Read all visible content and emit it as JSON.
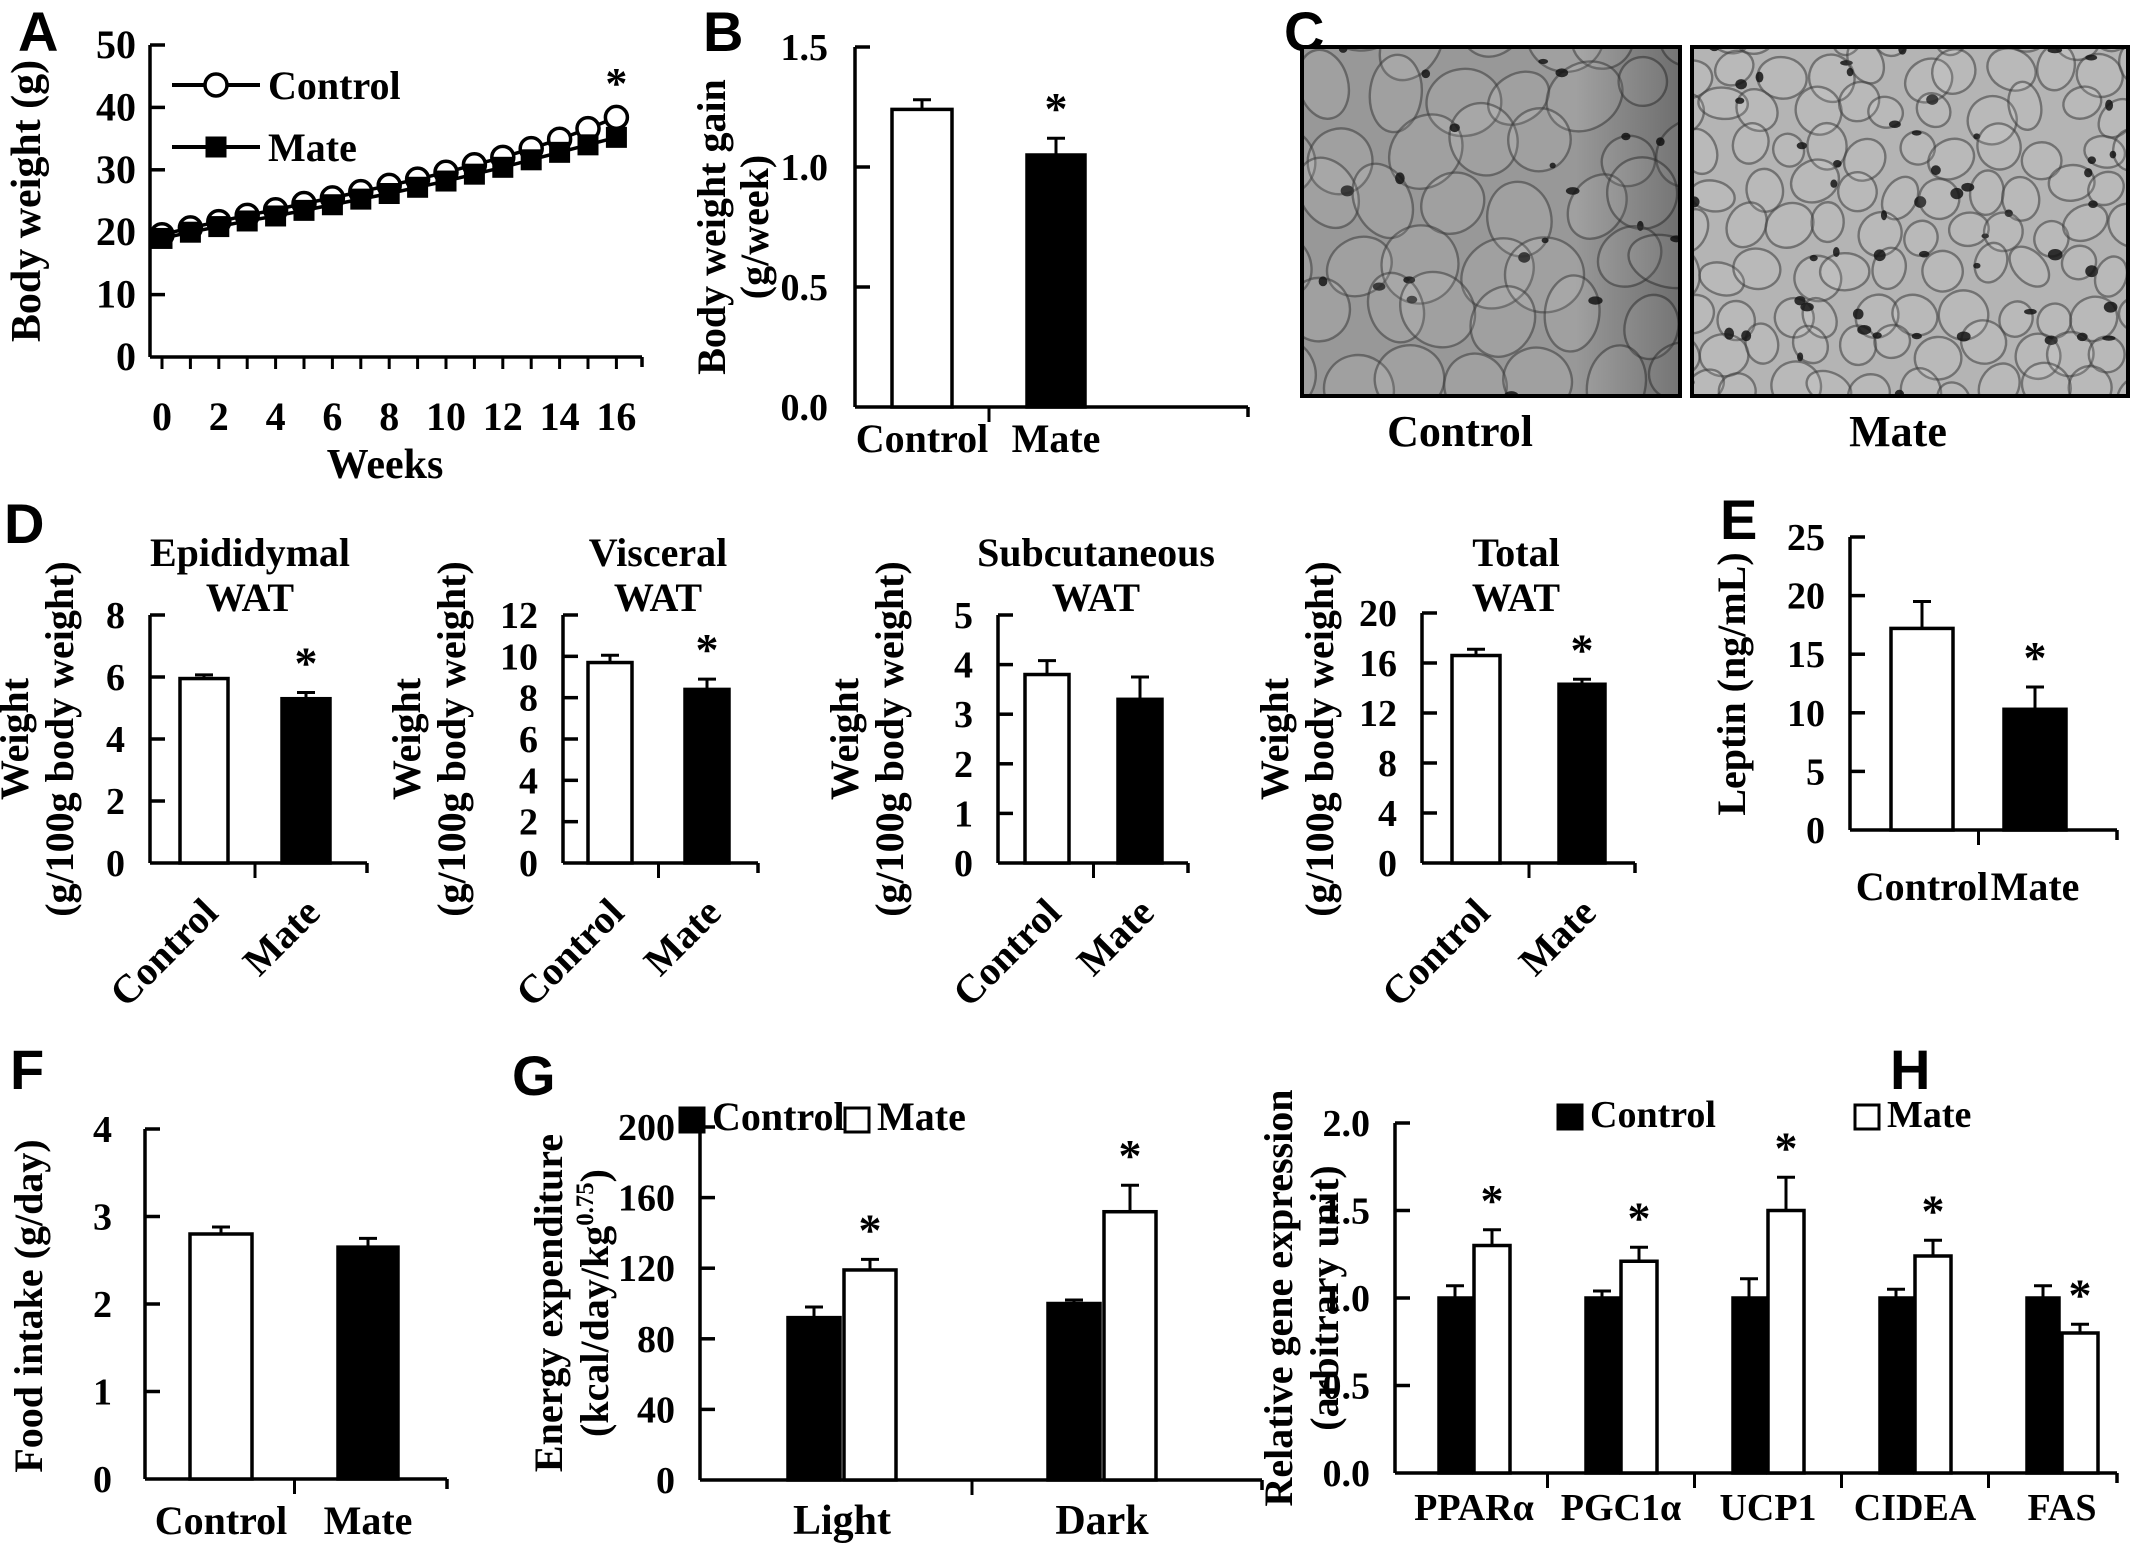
{
  "panel_labels": {
    "a": "A",
    "b": "B",
    "c": "C",
    "d": "D",
    "e": "E",
    "f": "F",
    "g": "G",
    "h": "H"
  },
  "histology": {
    "control_label": "Control",
    "mate_label": "Mate",
    "colors": {
      "control_bg": "#989898",
      "mate_bg": "#b4b4b4",
      "membrane": "#3a3a3a",
      "nucleus": "#151515"
    }
  },
  "chart_data": [
    {
      "id": "A",
      "type": "line",
      "title": "",
      "xlabel": "Weeks",
      "ylabel": "Body weight (g)",
      "ylim": [
        0,
        50
      ],
      "yticks": [
        "0",
        "10",
        "20",
        "30",
        "40",
        "50"
      ],
      "xticks": [
        0,
        2,
        4,
        6,
        8,
        10,
        12,
        14,
        16
      ],
      "x": [
        0,
        1,
        2,
        3,
        4,
        5,
        6,
        7,
        8,
        9,
        10,
        11,
        12,
        13,
        14,
        15,
        16
      ],
      "series": [
        {
          "name": "Control",
          "marker": "open-circle",
          "values": [
            19.6,
            20.7,
            21.7,
            22.7,
            23.6,
            24.6,
            25.5,
            26.5,
            27.5,
            28.5,
            29.6,
            30.8,
            32.0,
            33.4,
            34.9,
            36.6,
            38.4
          ]
        },
        {
          "name": "Mate",
          "marker": "filled-square",
          "values": [
            19.0,
            20.0,
            20.9,
            21.8,
            22.6,
            23.5,
            24.4,
            25.3,
            26.2,
            27.2,
            28.2,
            29.3,
            30.4,
            31.6,
            32.8,
            34.0,
            35.2
          ]
        }
      ],
      "sig_annotation": {
        "text": "*",
        "x": 16,
        "y": 41.5
      },
      "legend_position": "top-left",
      "grid": false
    },
    {
      "id": "B",
      "type": "bar",
      "ylabel_lines": [
        "Body weight gain",
        "(g/week)"
      ],
      "categories": [
        "Control",
        "Mate"
      ],
      "values": [
        1.24,
        1.05
      ],
      "errors": [
        0.04,
        0.07
      ],
      "sig": [
        false,
        true
      ],
      "fills": [
        "white",
        "black"
      ],
      "ylim": [
        0,
        1.5
      ],
      "yticks": [
        "0.0",
        "0.5",
        "1.0",
        "1.5"
      ]
    },
    {
      "id": "D1",
      "type": "bar",
      "title_lines": [
        "Epididymal",
        "WAT"
      ],
      "ylabel_lines": [
        "Weight",
        "(g/100g body weight)"
      ],
      "categories": [
        "Control",
        "Mate"
      ],
      "values": [
        5.95,
        5.3
      ],
      "errors": [
        0.12,
        0.2
      ],
      "sig": [
        false,
        true
      ],
      "fills": [
        "white",
        "black"
      ],
      "ylim": [
        0,
        8
      ],
      "yticks": [
        "0",
        "2",
        "4",
        "6",
        "8"
      ]
    },
    {
      "id": "D2",
      "type": "bar",
      "title_lines": [
        "Visceral",
        "WAT"
      ],
      "ylabel_lines": [
        "Weight",
        "(g/100g body weight)"
      ],
      "categories": [
        "Control",
        "Mate"
      ],
      "values": [
        9.7,
        8.4
      ],
      "errors": [
        0.35,
        0.5
      ],
      "sig": [
        false,
        true
      ],
      "fills": [
        "white",
        "black"
      ],
      "ylim": [
        0,
        12
      ],
      "yticks": [
        "0",
        "2",
        "4",
        "6",
        "8",
        "10",
        "12"
      ]
    },
    {
      "id": "D3",
      "type": "bar",
      "title_lines": [
        "Subcutaneous",
        "WAT"
      ],
      "ylabel_lines": [
        "Weight",
        "(g/100g body weight)"
      ],
      "categories": [
        "Control",
        "Mate"
      ],
      "values": [
        3.8,
        3.3
      ],
      "errors": [
        0.28,
        0.45
      ],
      "sig": [
        false,
        false
      ],
      "fills": [
        "white",
        "black"
      ],
      "ylim": [
        0,
        5
      ],
      "yticks": [
        "0",
        "1",
        "2",
        "3",
        "4",
        "5"
      ]
    },
    {
      "id": "D4",
      "type": "bar",
      "title_lines": [
        "Total",
        "WAT"
      ],
      "ylabel_lines": [
        "Weight",
        "(g/100g body weight)"
      ],
      "categories": [
        "Control",
        "Mate"
      ],
      "values": [
        16.6,
        14.3
      ],
      "errors": [
        0.5,
        0.4
      ],
      "sig": [
        false,
        true
      ],
      "fills": [
        "white",
        "black"
      ],
      "ylim": [
        0,
        20
      ],
      "yticks": [
        "0",
        "4",
        "8",
        "12",
        "16",
        "20"
      ]
    },
    {
      "id": "E",
      "type": "bar",
      "ylabel": "Leptin (ng/mL)",
      "categories": [
        "Control",
        "Mate"
      ],
      "values": [
        17.2,
        10.3
      ],
      "errors": [
        2.3,
        1.9
      ],
      "sig": [
        false,
        true
      ],
      "fills": [
        "white",
        "black"
      ],
      "ylim": [
        0,
        25
      ],
      "yticks": [
        "0",
        "5",
        "10",
        "15",
        "20",
        "25"
      ]
    },
    {
      "id": "F",
      "type": "bar",
      "ylabel": "Food intake (g/day)",
      "categories": [
        "Control",
        "Mate"
      ],
      "values": [
        2.8,
        2.65
      ],
      "errors": [
        0.08,
        0.1
      ],
      "sig": [
        false,
        false
      ],
      "fills": [
        "white",
        "black"
      ],
      "ylim": [
        0,
        4
      ],
      "yticks": [
        "0",
        "1",
        "2",
        "3",
        "4"
      ]
    },
    {
      "id": "G",
      "type": "grouped-bar",
      "ylabel_lines": [
        "Energy expenditure",
        "(kcal/day/kg^0.75)"
      ],
      "categories": [
        "Light",
        "Dark"
      ],
      "series": [
        {
          "name": "Control",
          "fill": "black",
          "values": [
            92,
            100
          ],
          "errors": [
            6,
            2
          ],
          "sig": [
            false,
            false
          ]
        },
        {
          "name": "Mate",
          "fill": "white",
          "values": [
            119,
            152
          ],
          "errors": [
            6,
            15
          ],
          "sig": [
            true,
            true
          ]
        }
      ],
      "ylim": [
        0,
        200
      ],
      "yticks": [
        "0",
        "40",
        "80",
        "120",
        "160",
        "200"
      ],
      "legend": true
    },
    {
      "id": "H",
      "type": "grouped-bar",
      "ylabel_lines": [
        "Relative gene expression",
        "(arbitrary  unit)"
      ],
      "categories": [
        "PPARα",
        "PGC1α",
        "UCP1",
        "CIDEA",
        "FAS"
      ],
      "series": [
        {
          "name": "Control",
          "fill": "black",
          "values": [
            1.0,
            1.0,
            1.0,
            1.0,
            1.0
          ],
          "errors": [
            0.07,
            0.04,
            0.11,
            0.05,
            0.07
          ],
          "sig": [
            false,
            false,
            false,
            false,
            false
          ]
        },
        {
          "name": "Mate",
          "fill": "white",
          "values": [
            1.3,
            1.21,
            1.5,
            1.24,
            0.8
          ],
          "errors": [
            0.09,
            0.08,
            0.19,
            0.09,
            0.05
          ],
          "sig": [
            true,
            true,
            true,
            true,
            true
          ]
        }
      ],
      "ylim": [
        0,
        2
      ],
      "yticks": [
        "0.0",
        "0.5",
        "1.0",
        "1.5",
        "2.0"
      ],
      "legend": true
    }
  ]
}
